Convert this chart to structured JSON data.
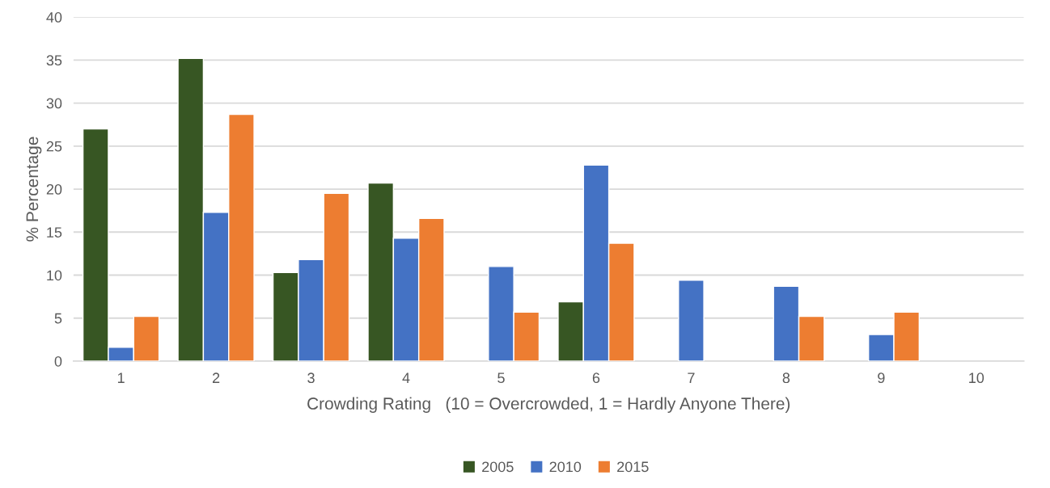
{
  "chart_data": {
    "type": "bar",
    "xlabel": "Crowding Rating   (10 = Overcrowded, 1 = Hardly Anyone There)",
    "ylabel": "% Percentage",
    "categories": [
      "1",
      "2",
      "3",
      "4",
      "5",
      "6",
      "7",
      "8",
      "9",
      "10"
    ],
    "series": [
      {
        "name": "2005",
        "color": "#375623",
        "values": [
          27.0,
          35.2,
          10.3,
          20.7,
          null,
          6.9,
          null,
          null,
          null,
          null
        ]
      },
      {
        "name": "2010",
        "color": "#4472c4",
        "values": [
          1.6,
          17.3,
          11.8,
          14.3,
          11.0,
          22.8,
          9.4,
          8.7,
          3.1,
          null
        ]
      },
      {
        "name": "2015",
        "color": "#ed7d31",
        "values": [
          5.2,
          28.7,
          19.5,
          16.6,
          5.7,
          13.7,
          null,
          5.2,
          5.7,
          null
        ]
      }
    ],
    "ylim": [
      0,
      40
    ],
    "yticks": [
      0,
      5,
      10,
      15,
      20,
      25,
      30,
      35,
      40
    ],
    "grid": "y",
    "legend": "bottom"
  }
}
